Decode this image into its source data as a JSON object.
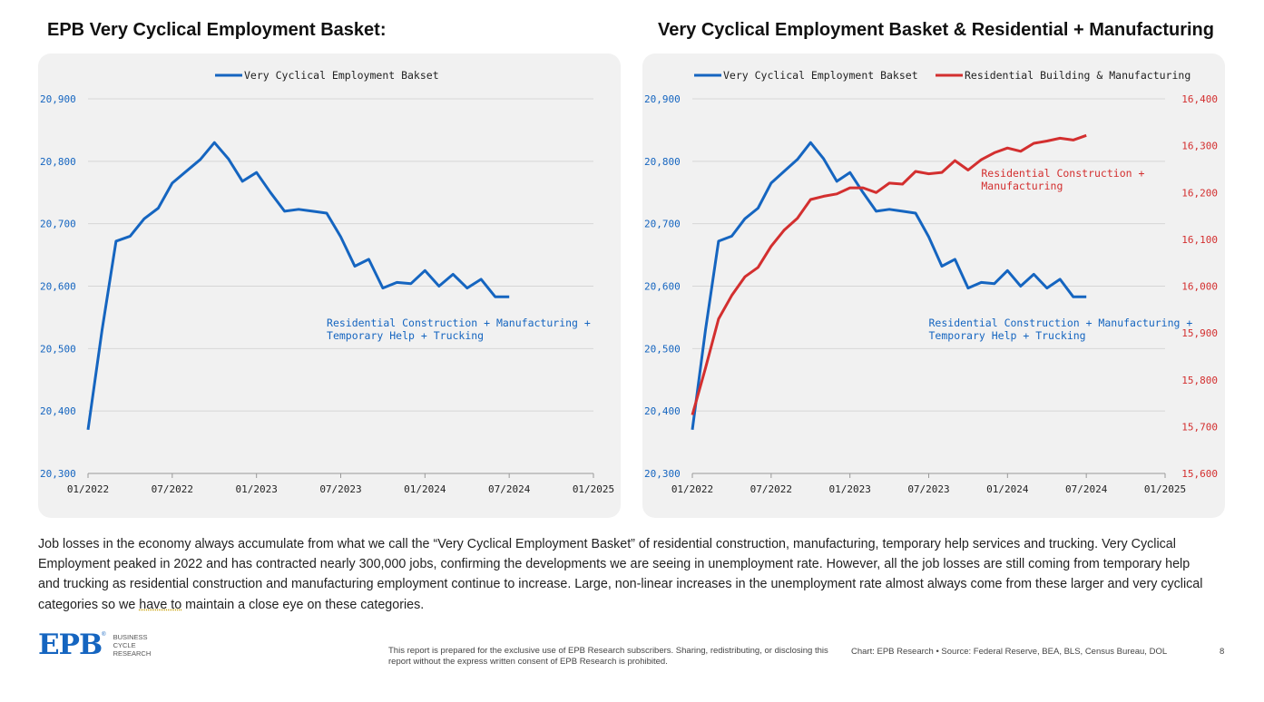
{
  "page": {
    "left_title": "EPB Very Cyclical Employment Basket:",
    "right_title": "Very Cyclical Employment Basket & Residential + Manufacturing",
    "body_pre": "Job losses in the economy always accumulate from what we call the “Very Cyclical Employment Basket” of residential construction, manufacturing, temporary help services and trucking. Very Cyclical Employment peaked in 2022 and has contracted nearly 300,000 jobs, confirming the developments we are seeing in unemployment rate. However, all the job losses are still coming from temporary help and trucking as residential construction and manufacturing employment continue to increase. Large, non-linear increases in the unemployment rate almost always come from these larger and very cyclical categories so we ",
    "body_underlined": "have to",
    "body_post": " maintain a close eye on these categories.",
    "logo_mark": "EPB",
    "logo_registered": "®",
    "logo_line1": "BUSINESS",
    "logo_line2": "CYCLE",
    "logo_line3": "RESEARCH",
    "disclaimer": "This report is prepared for the exclusive use of EPB Research subscribers. Sharing, redistributing, or disclosing this report without the express written consent of EPB Research is prohibited.",
    "source": "Chart: EPB Research  •  Source: Federal Reserve, BEA, BLS, Census Bureau, DOL",
    "page_number": "8"
  },
  "colors": {
    "blue": "#1565c0",
    "red": "#d32f2f",
    "grid": "#d6d6d6",
    "axis_text": "#1565c0",
    "tick_text": "#222222"
  },
  "chart_data": [
    {
      "type": "line",
      "title": "",
      "x_dates": [
        "2022-01",
        "2022-02",
        "2022-03",
        "2022-04",
        "2022-05",
        "2022-06",
        "2022-07",
        "2022-08",
        "2022-09",
        "2022-10",
        "2022-11",
        "2022-12",
        "2023-01",
        "2023-02",
        "2023-03",
        "2023-04",
        "2023-05",
        "2023-06",
        "2023-07",
        "2023-08",
        "2023-09",
        "2023-10",
        "2023-11",
        "2023-12",
        "2024-01",
        "2024-02",
        "2024-03",
        "2024-04",
        "2024-05",
        "2024-06",
        "2024-07",
        "2024-08"
      ],
      "x_ticks": [
        "01/2022",
        "07/2022",
        "01/2023",
        "07/2023",
        "01/2024",
        "07/2024",
        "01/2025"
      ],
      "xlim": [
        "2022-01",
        "2025-01"
      ],
      "ylim": [
        20300,
        20900
      ],
      "y_ticks": [
        20300,
        20400,
        20500,
        20600,
        20700,
        20800,
        20900
      ],
      "y_tick_labels": [
        "20,300",
        "20,400",
        "20,500",
        "20,600",
        "20,700",
        "20,800",
        "20,900"
      ],
      "grid": true,
      "legend_position": "top-center",
      "series": [
        {
          "name": "Very Cyclical Employment Bakset",
          "color": "#1565c0",
          "axis": "left",
          "values": [
            20370,
            20530,
            20672,
            20680,
            20708,
            20725,
            20765,
            20784,
            20803,
            20830,
            20804,
            20768,
            20782,
            20750,
            20720,
            20723,
            20720,
            20717,
            20679,
            20632,
            20643,
            20597,
            20606,
            20604,
            20625,
            20600,
            20619,
            20597,
            20611,
            20583,
            20583,
            null
          ]
        }
      ],
      "annotations": [
        {
          "text_line1": "Residential Construction + Manufacturing +",
          "text_line2": "Temporary Help + Trucking",
          "color": "#1565c0",
          "at_date": "2023-06",
          "at_value": 20535
        }
      ]
    },
    {
      "type": "line",
      "title": "",
      "x_dates": [
        "2022-01",
        "2022-02",
        "2022-03",
        "2022-04",
        "2022-05",
        "2022-06",
        "2022-07",
        "2022-08",
        "2022-09",
        "2022-10",
        "2022-11",
        "2022-12",
        "2023-01",
        "2023-02",
        "2023-03",
        "2023-04",
        "2023-05",
        "2023-06",
        "2023-07",
        "2023-08",
        "2023-09",
        "2023-10",
        "2023-11",
        "2023-12",
        "2024-01",
        "2024-02",
        "2024-03",
        "2024-04",
        "2024-05",
        "2024-06",
        "2024-07",
        "2024-08"
      ],
      "x_ticks": [
        "01/2022",
        "07/2022",
        "01/2023",
        "07/2023",
        "01/2024",
        "07/2024",
        "01/2025"
      ],
      "xlim": [
        "2022-01",
        "2025-01"
      ],
      "ylim": [
        20300,
        20900
      ],
      "y_ticks": [
        20300,
        20400,
        20500,
        20600,
        20700,
        20800,
        20900
      ],
      "y_tick_labels": [
        "20,300",
        "20,400",
        "20,500",
        "20,600",
        "20,700",
        "20,800",
        "20,900"
      ],
      "y2lim": [
        15600,
        16400
      ],
      "y2_ticks": [
        15600,
        15700,
        15800,
        15900,
        16000,
        16100,
        16200,
        16300,
        16400
      ],
      "y2_tick_labels": [
        "15,600",
        "15,700",
        "15,800",
        "15,900",
        "16,000",
        "16,100",
        "16,200",
        "16,300",
        "16,400"
      ],
      "grid": true,
      "legend_position": "top",
      "series": [
        {
          "name": "Very Cyclical Employment Bakset",
          "color": "#1565c0",
          "axis": "left",
          "values": [
            20370,
            20530,
            20672,
            20680,
            20708,
            20725,
            20765,
            20784,
            20803,
            20830,
            20804,
            20768,
            20782,
            20750,
            20720,
            20723,
            20720,
            20717,
            20679,
            20632,
            20643,
            20597,
            20606,
            20604,
            20625,
            20600,
            20619,
            20597,
            20611,
            20583,
            20583,
            null
          ]
        },
        {
          "name": "Residential Building & Manufacturing",
          "color": "#d32f2f",
          "axis": "right",
          "values": [
            15725,
            15825,
            15930,
            15980,
            16020,
            16040,
            16085,
            16120,
            16145,
            16185,
            16192,
            16197,
            16210,
            16210,
            16200,
            16220,
            16218,
            16245,
            16240,
            16243,
            16268,
            16248,
            16270,
            16285,
            16295,
            16288,
            16305,
            16310,
            16316,
            16312,
            16322,
            null
          ]
        }
      ],
      "annotations": [
        {
          "text_line1": "Residential Construction + Manufacturing +",
          "text_line2": "Temporary Help + Trucking",
          "color": "#1565c0",
          "at_date": "2023-07",
          "at_value": 20535
        },
        {
          "text_line1": "Residential Construction +",
          "text_line2": "Manufacturing",
          "color": "#d32f2f",
          "at_date": "2023-11",
          "at_value": 20775
        }
      ]
    }
  ]
}
